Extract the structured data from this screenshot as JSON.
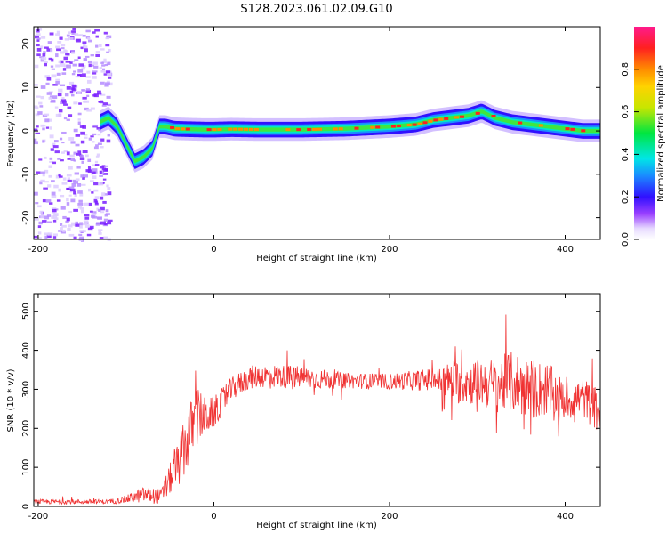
{
  "title": "S128.2023.061.02.09.G10",
  "chart_data": [
    {
      "type": "heatmap",
      "xlabel": "Height of straight line (km)",
      "ylabel": "Frequency (Hz)",
      "xlim": [
        -205,
        440
      ],
      "ylim": [
        -25,
        24
      ],
      "xticks": [
        -200,
        0,
        200,
        400
      ],
      "yticks": [
        -20,
        -10,
        0,
        10,
        20
      ],
      "ridge": {
        "x": [
          -130,
          -120,
          -110,
          -100,
          -90,
          -80,
          -70,
          -62,
          -55,
          -45,
          -30,
          -10,
          0,
          20,
          50,
          100,
          150,
          200,
          230,
          250,
          270,
          290,
          305,
          320,
          340,
          360,
          380,
          400,
          420,
          440
        ],
        "y": [
          2,
          3,
          1,
          -3,
          -7,
          -6,
          -4,
          1,
          1,
          0.5,
          0.4,
          0.3,
          0.3,
          0.4,
          0.3,
          0.3,
          0.5,
          1,
          1.5,
          2.5,
          3,
          3.5,
          4.5,
          3,
          2,
          1.5,
          1,
          0.5,
          0,
          0
        ]
      },
      "noise_region_x": [
        -205,
        -120
      ],
      "colorbar": {
        "label": "Normalized spectral amplitude",
        "range": [
          0.0,
          1.0
        ],
        "ticks": [
          "0.0",
          "0.2",
          "0.4",
          "0.6",
          "0.8"
        ],
        "tick_values": [
          0.0,
          0.2,
          0.4,
          0.6,
          0.8
        ]
      },
      "grid": false
    },
    {
      "type": "line",
      "xlabel": "Height of straight line (km)",
      "ylabel": "SNR (10 * v/v)",
      "xlim": [
        -205,
        440
      ],
      "ylim": [
        0,
        545
      ],
      "xticks": [
        -200,
        0,
        200,
        400
      ],
      "yticks": [
        0,
        100,
        200,
        300,
        400,
        500
      ],
      "color": "#f03232",
      "envelope": {
        "x": [
          -205,
          -120,
          -100,
          -80,
          -60,
          -50,
          -40,
          -30,
          -20,
          -10,
          0,
          20,
          40,
          60,
          100,
          150,
          200,
          250,
          280,
          300,
          320,
          340,
          360,
          380,
          400,
          420,
          440
        ],
        "mean": [
          12,
          12,
          18,
          30,
          25,
          70,
          110,
          170,
          230,
          230,
          240,
          300,
          330,
          335,
          330,
          322,
          320,
          325,
          320,
          320,
          310,
          320,
          300,
          300,
          270,
          280,
          240
        ],
        "spread": [
          6,
          6,
          10,
          20,
          20,
          40,
          60,
          80,
          80,
          50,
          40,
          30,
          30,
          30,
          30,
          20,
          20,
          30,
          60,
          60,
          70,
          80,
          80,
          70,
          50,
          50,
          60
        ]
      },
      "grid": false
    }
  ]
}
